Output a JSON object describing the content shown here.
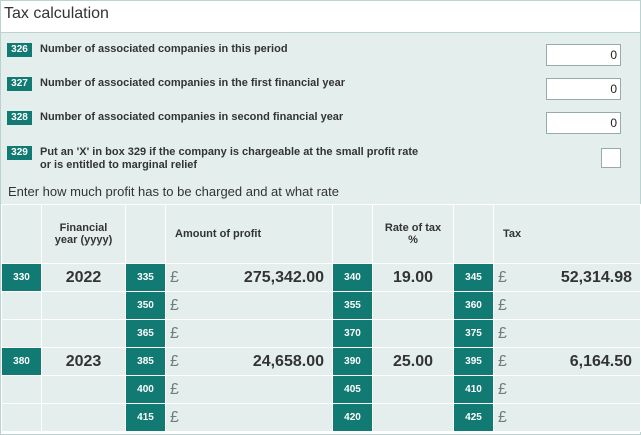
{
  "title": "Tax calculation",
  "questions": [
    {
      "box": "326",
      "label": "Number of associated companies in this period",
      "value": "0"
    },
    {
      "box": "327",
      "label": "Number of associated companies in the first financial year",
      "value": "0"
    },
    {
      "box": "328",
      "label": "Number of associated companies in second financial year",
      "value": "0"
    },
    {
      "box": "329",
      "label_line1": "Put an 'X' in box 329 if the company is chargeable at the small profit rate",
      "label_line2": "or is entitled to marginal relief",
      "value": ""
    }
  ],
  "subheading": "Enter how much profit has to be charged and at what rate",
  "headers": {
    "financial_year_line1": "Financial",
    "financial_year_line2": "year (yyyy)",
    "amount": "Amount of profit",
    "rate_line1": "Rate of tax",
    "rate_line2": "%",
    "tax": "Tax"
  },
  "currency": "£",
  "rows": [
    {
      "year_box": "330",
      "year": "2022",
      "amount_box": "335",
      "amount": "275,342.00",
      "rate_box": "340",
      "rate": "19.00",
      "tax_box": "345",
      "tax": "52,314.98"
    },
    {
      "year_box": "",
      "year": "",
      "amount_box": "350",
      "amount": "",
      "rate_box": "355",
      "rate": "",
      "tax_box": "360",
      "tax": ""
    },
    {
      "year_box": "",
      "year": "",
      "amount_box": "365",
      "amount": "",
      "rate_box": "370",
      "rate": "",
      "tax_box": "375",
      "tax": ""
    },
    {
      "year_box": "380",
      "year": "2023",
      "amount_box": "385",
      "amount": "24,658.00",
      "rate_box": "390",
      "rate": "25.00",
      "tax_box": "395",
      "tax": "6,164.50"
    },
    {
      "year_box": "",
      "year": "",
      "amount_box": "400",
      "amount": "",
      "rate_box": "405",
      "rate": "",
      "tax_box": "410",
      "tax": ""
    },
    {
      "year_box": "",
      "year": "",
      "amount_box": "415",
      "amount": "",
      "rate_box": "420",
      "rate": "",
      "tax_box": "425",
      "tax": ""
    }
  ]
}
